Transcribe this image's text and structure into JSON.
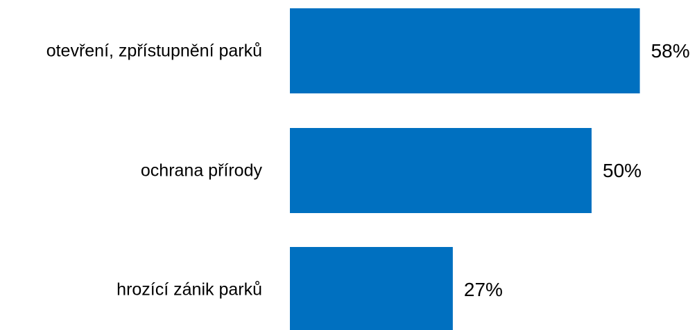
{
  "chart_data": {
    "type": "bar",
    "orientation": "horizontal",
    "categories": [
      "otevření, zpřístupnění parků",
      "ochrana přírody",
      "hrozící zánik parků"
    ],
    "values": [
      58,
      50,
      27
    ],
    "value_labels": [
      "58%",
      "50%",
      "27%"
    ],
    "xlim": [
      0,
      100
    ],
    "grid": false,
    "legend": "none",
    "bar_color": "#0070C0"
  }
}
